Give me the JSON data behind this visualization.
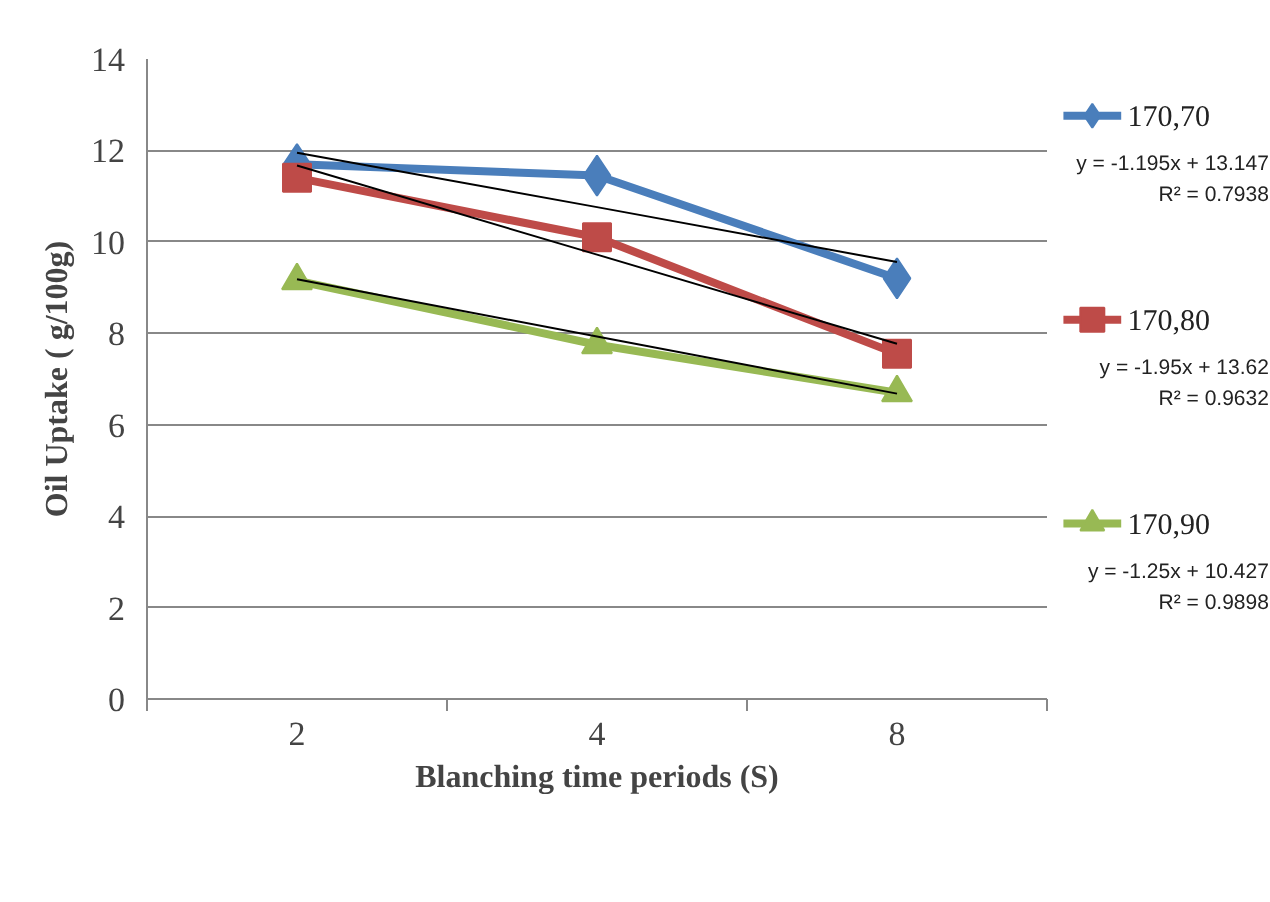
{
  "chart_data": {
    "type": "line",
    "xlabel": "Blanching time periods (S)",
    "ylabel": "Oil Uptake ( g/100g)",
    "categories": [
      "2",
      "4",
      "8"
    ],
    "ylim": [
      0,
      14
    ],
    "yticks": [
      0,
      2,
      4,
      6,
      8,
      10,
      12,
      14
    ],
    "grid": "y",
    "legend": "right",
    "series": [
      {
        "name": "170,70",
        "color": "#4a7ebb",
        "marker": "diamond",
        "values": [
          11.7,
          11.45,
          9.2
        ]
      },
      {
        "name": "170,80",
        "color": "#be4b48",
        "marker": "square",
        "values": [
          11.4,
          10.1,
          7.55
        ]
      },
      {
        "name": "170,90",
        "color": "#98b954",
        "marker": "triangle",
        "values": [
          9.15,
          7.75,
          6.7
        ]
      },
      {
        "type": "line",
        "color": "#000000",
        "marker": "none",
        "x": [
          "2",
          "4",
          "8"
        ],
        "values": [
          11.95,
          10.76,
          9.56
        ]
      },
      {
        "type": "line",
        "color": "#000000",
        "marker": "none",
        "x": [
          "2",
          "4",
          "8"
        ],
        "values": [
          11.67,
          9.72,
          7.77
        ]
      },
      {
        "type": "line",
        "color": "#000000",
        "marker": "none",
        "x": [
          "2",
          "4",
          "8"
        ],
        "values": [
          9.18,
          7.93,
          6.68
        ]
      }
    ],
    "annotations": [
      "y = -1.195x + 13.147",
      "R² = 0.7938",
      "y = -1.95x + 13.62",
      "R² = 0.9632",
      "y = -1.25x + 10.427",
      "R² = 0.9898"
    ]
  }
}
